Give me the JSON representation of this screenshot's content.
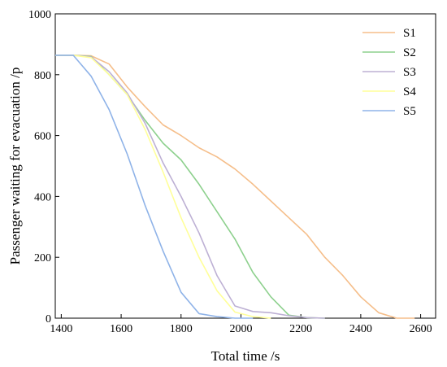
{
  "chart_data": {
    "type": "line",
    "title": "",
    "xlabel": "Total time /s",
    "ylabel": "Passenger waiting for evacuation /p",
    "xlim": [
      1380,
      2650
    ],
    "ylim": [
      0,
      1000
    ],
    "xticks": [
      1400,
      1600,
      1800,
      2000,
      2200,
      2400,
      2600
    ],
    "yticks": [
      0,
      200,
      400,
      600,
      800,
      1000
    ],
    "grid": false,
    "legend_position": "top-right",
    "series": [
      {
        "name": "S1",
        "color": "#F5BE8A",
        "points": [
          [
            1380,
            864
          ],
          [
            1440,
            864
          ],
          [
            1500,
            862
          ],
          [
            1560,
            835
          ],
          [
            1620,
            760
          ],
          [
            1680,
            695
          ],
          [
            1740,
            635
          ],
          [
            1800,
            600
          ],
          [
            1860,
            560
          ],
          [
            1920,
            530
          ],
          [
            1980,
            490
          ],
          [
            2040,
            440
          ],
          [
            2100,
            385
          ],
          [
            2160,
            330
          ],
          [
            2220,
            275
          ],
          [
            2280,
            200
          ],
          [
            2340,
            140
          ],
          [
            2400,
            70
          ],
          [
            2460,
            18
          ],
          [
            2520,
            0
          ],
          [
            2580,
            0
          ]
        ]
      },
      {
        "name": "S2",
        "color": "#8DD08D",
        "points": [
          [
            1380,
            864
          ],
          [
            1440,
            864
          ],
          [
            1500,
            860
          ],
          [
            1560,
            800
          ],
          [
            1620,
            735
          ],
          [
            1680,
            650
          ],
          [
            1740,
            575
          ],
          [
            1800,
            520
          ],
          [
            1860,
            440
          ],
          [
            1920,
            350
          ],
          [
            1980,
            260
          ],
          [
            2040,
            150
          ],
          [
            2100,
            70
          ],
          [
            2160,
            10
          ],
          [
            2220,
            2
          ],
          [
            2280,
            0
          ]
        ]
      },
      {
        "name": "S3",
        "color": "#BDB0D4",
        "points": [
          [
            1380,
            864
          ],
          [
            1440,
            864
          ],
          [
            1500,
            858
          ],
          [
            1560,
            810
          ],
          [
            1620,
            740
          ],
          [
            1680,
            640
          ],
          [
            1740,
            510
          ],
          [
            1800,
            400
          ],
          [
            1860,
            280
          ],
          [
            1920,
            140
          ],
          [
            1980,
            40
          ],
          [
            2040,
            22
          ],
          [
            2100,
            18
          ],
          [
            2160,
            8
          ],
          [
            2220,
            2
          ],
          [
            2280,
            0
          ]
        ]
      },
      {
        "name": "S4",
        "color": "#FFFF99",
        "points": [
          [
            1380,
            864
          ],
          [
            1440,
            864
          ],
          [
            1500,
            856
          ],
          [
            1560,
            800
          ],
          [
            1620,
            735
          ],
          [
            1680,
            620
          ],
          [
            1740,
            480
          ],
          [
            1800,
            330
          ],
          [
            1860,
            200
          ],
          [
            1920,
            90
          ],
          [
            1980,
            20
          ],
          [
            2040,
            5
          ],
          [
            2100,
            0
          ]
        ]
      },
      {
        "name": "S5",
        "color": "#8FB3E8",
        "points": [
          [
            1380,
            864
          ],
          [
            1440,
            864
          ],
          [
            1500,
            795
          ],
          [
            1560,
            685
          ],
          [
            1620,
            540
          ],
          [
            1680,
            370
          ],
          [
            1740,
            220
          ],
          [
            1800,
            85
          ],
          [
            1860,
            15
          ],
          [
            1920,
            5
          ],
          [
            1980,
            0
          ],
          [
            2040,
            0
          ]
        ]
      }
    ]
  }
}
